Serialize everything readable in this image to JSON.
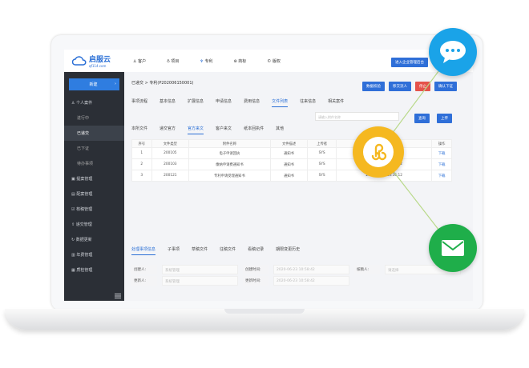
{
  "brand": {
    "name": "启服云",
    "domain": "qf114.com"
  },
  "nav": [
    {
      "label": "客户"
    },
    {
      "label": "项目"
    },
    {
      "label": "专利"
    },
    {
      "label": "商标"
    },
    {
      "label": "版权"
    }
  ],
  "admin_button": "进入企业管理后台",
  "sidebar": {
    "new": "新建",
    "items": [
      {
        "label": "个人案件"
      },
      {
        "label": "进行中"
      },
      {
        "label": "已递交"
      },
      {
        "label": "已下证"
      },
      {
        "label": "待办事项"
      },
      {
        "label": "提案管理"
      },
      {
        "label": "配案管理"
      },
      {
        "label": "核稿管理"
      },
      {
        "label": "递交管理"
      },
      {
        "label": "数据更新"
      },
      {
        "label": "年费管理"
      },
      {
        "label": "质检管理"
      }
    ]
  },
  "breadcrumb": {
    "parent": "已递交",
    "current": "专利(P202006150001)"
  },
  "actions": [
    "数据校验",
    "移交流人",
    "停止",
    "确认下证"
  ],
  "tabs": [
    "事项流程",
    "基本信息",
    "扩展信息",
    "申请信息",
    "费用信息",
    "文件列表",
    "往来信息",
    "相关案件"
  ],
  "subtabs": [
    "本所文件",
    "递交官方",
    "官方来文",
    "客户来文",
    "纸本回执件",
    "其他"
  ],
  "search": {
    "placeholder": "请输入附件名称",
    "query": "查询",
    "upload": "上传"
  },
  "table": {
    "headers": [
      "序号",
      "文件类型",
      "附件名称",
      "文件描述",
      "上传者",
      "上传时间",
      "操作"
    ],
    "rows": [
      [
        "1",
        "200105",
        "电子申请回执",
        "通知书",
        "SYS",
        "",
        "下载"
      ],
      [
        "2",
        "200103",
        "缴纳申请费通知书",
        "通知书",
        "SYS",
        "2020-07-02 10:16:12",
        "下载"
      ],
      [
        "3",
        "200121",
        "专利申请受理通知书",
        "通知书",
        "SYS",
        "2020-07-02 10:16:12",
        "下载"
      ]
    ]
  },
  "bottom_tabs": [
    "处理事项信息",
    "子事项",
    "草稿文件",
    "往稿文件",
    "看稿记录",
    "期限变更历史"
  ],
  "form": {
    "creator_label": "创建人:",
    "creator": "系统管理",
    "created_label": "创建时间:",
    "created": "2020-06-23 10:58:42",
    "reviewer_label": "核稿人:",
    "reviewer": "请选择",
    "updater_label": "更新人:",
    "updater": "系统管理",
    "updated_label": "更新时间:",
    "updated": "2020-06-23 10:58:42"
  },
  "colors": {
    "primary": "#2f6fd8",
    "danger": "#e5534b",
    "chat": "#1aa3e8",
    "miniprogram": "#f5b820",
    "mail": "#1fae4a"
  }
}
